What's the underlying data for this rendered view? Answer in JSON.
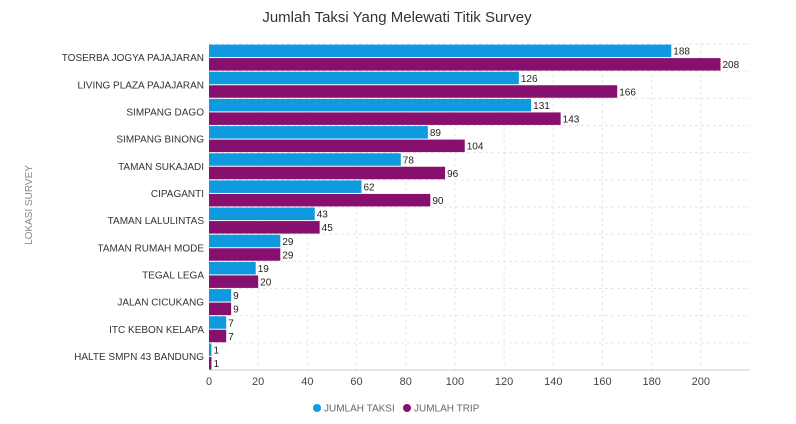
{
  "chart_data": {
    "type": "bar",
    "orientation": "horizontal",
    "title": "Jumlah Taksi Yang Melewati Titik Survey",
    "xlabel": "",
    "ylabel": "LOKASI SURVEY",
    "xlim": [
      0,
      220
    ],
    "x_ticks": [
      0,
      20,
      40,
      60,
      80,
      100,
      120,
      140,
      160,
      180,
      200
    ],
    "grid": true,
    "legend_position": "bottom",
    "categories": [
      "TOSERBA JOGYA PAJAJARAN",
      "LIVING PLAZA PAJAJARAN",
      "SIMPANG DAGO",
      "SIMPANG BINONG",
      "TAMAN SUKAJADI",
      "CIPAGANTI",
      "TAMAN LALULINTAS",
      "TAMAN RUMAH MODE",
      "TEGAL LEGA",
      "JALAN CICUKANG",
      "ITC KEBON KELAPA",
      "HALTE SMPN 43 BANDUNG"
    ],
    "series": [
      {
        "name": "JUMLAH TAKSI",
        "color": "#0f9ae0",
        "values": [
          188,
          126,
          131,
          89,
          78,
          62,
          43,
          29,
          19,
          9,
          7,
          1
        ]
      },
      {
        "name": "JUMLAH TRIP",
        "color": "#870f6e",
        "values": [
          208,
          166,
          143,
          104,
          96,
          90,
          45,
          29,
          20,
          9,
          7,
          1
        ]
      }
    ]
  }
}
